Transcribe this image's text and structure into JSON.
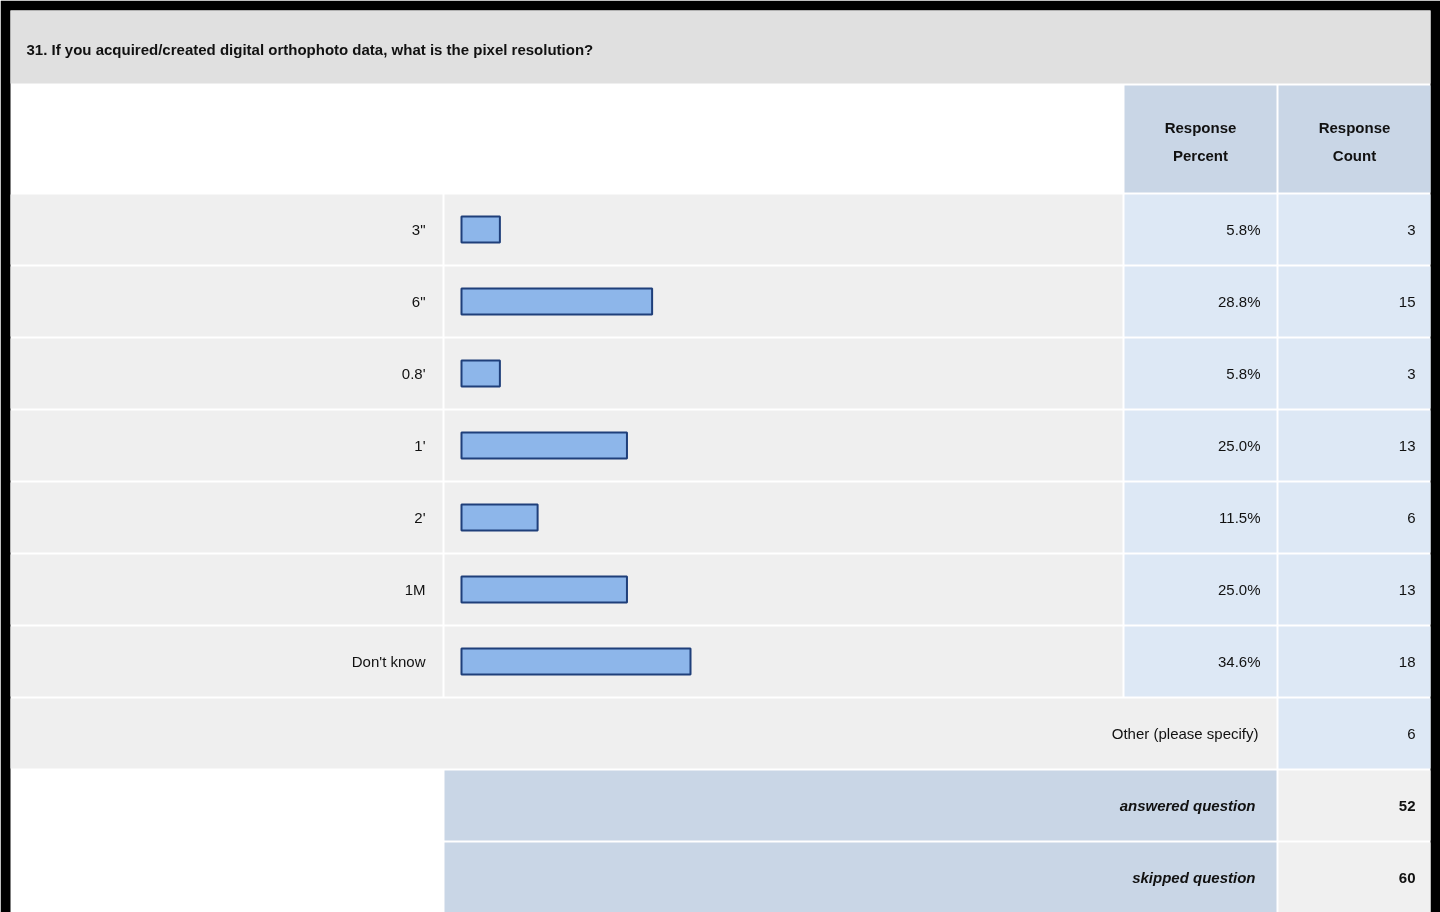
{
  "chart_data": {
    "type": "bar",
    "orientation": "horizontal",
    "title": "31. If you acquired/created digital orthophoto data, what is the pixel resolution?",
    "categories": [
      "3\"",
      "6\"",
      "0.8'",
      "1'",
      "2'",
      "1M",
      "Don't know"
    ],
    "values": [
      5.8,
      28.8,
      5.8,
      25.0,
      11.5,
      25.0,
      34.6
    ],
    "value_labels": [
      "5.8%",
      "28.8%",
      "5.8%",
      "25.0%",
      "11.5%",
      "25.0%",
      "34.6%"
    ],
    "color": "#8db6ea",
    "annotations": [
      "Response Percent",
      "Response Count",
      "3",
      "15",
      "3",
      "13",
      "6",
      "13",
      "18",
      "Other (please specify)",
      "6",
      "answered question",
      "52",
      "skipped question",
      "60"
    ]
  }
}
